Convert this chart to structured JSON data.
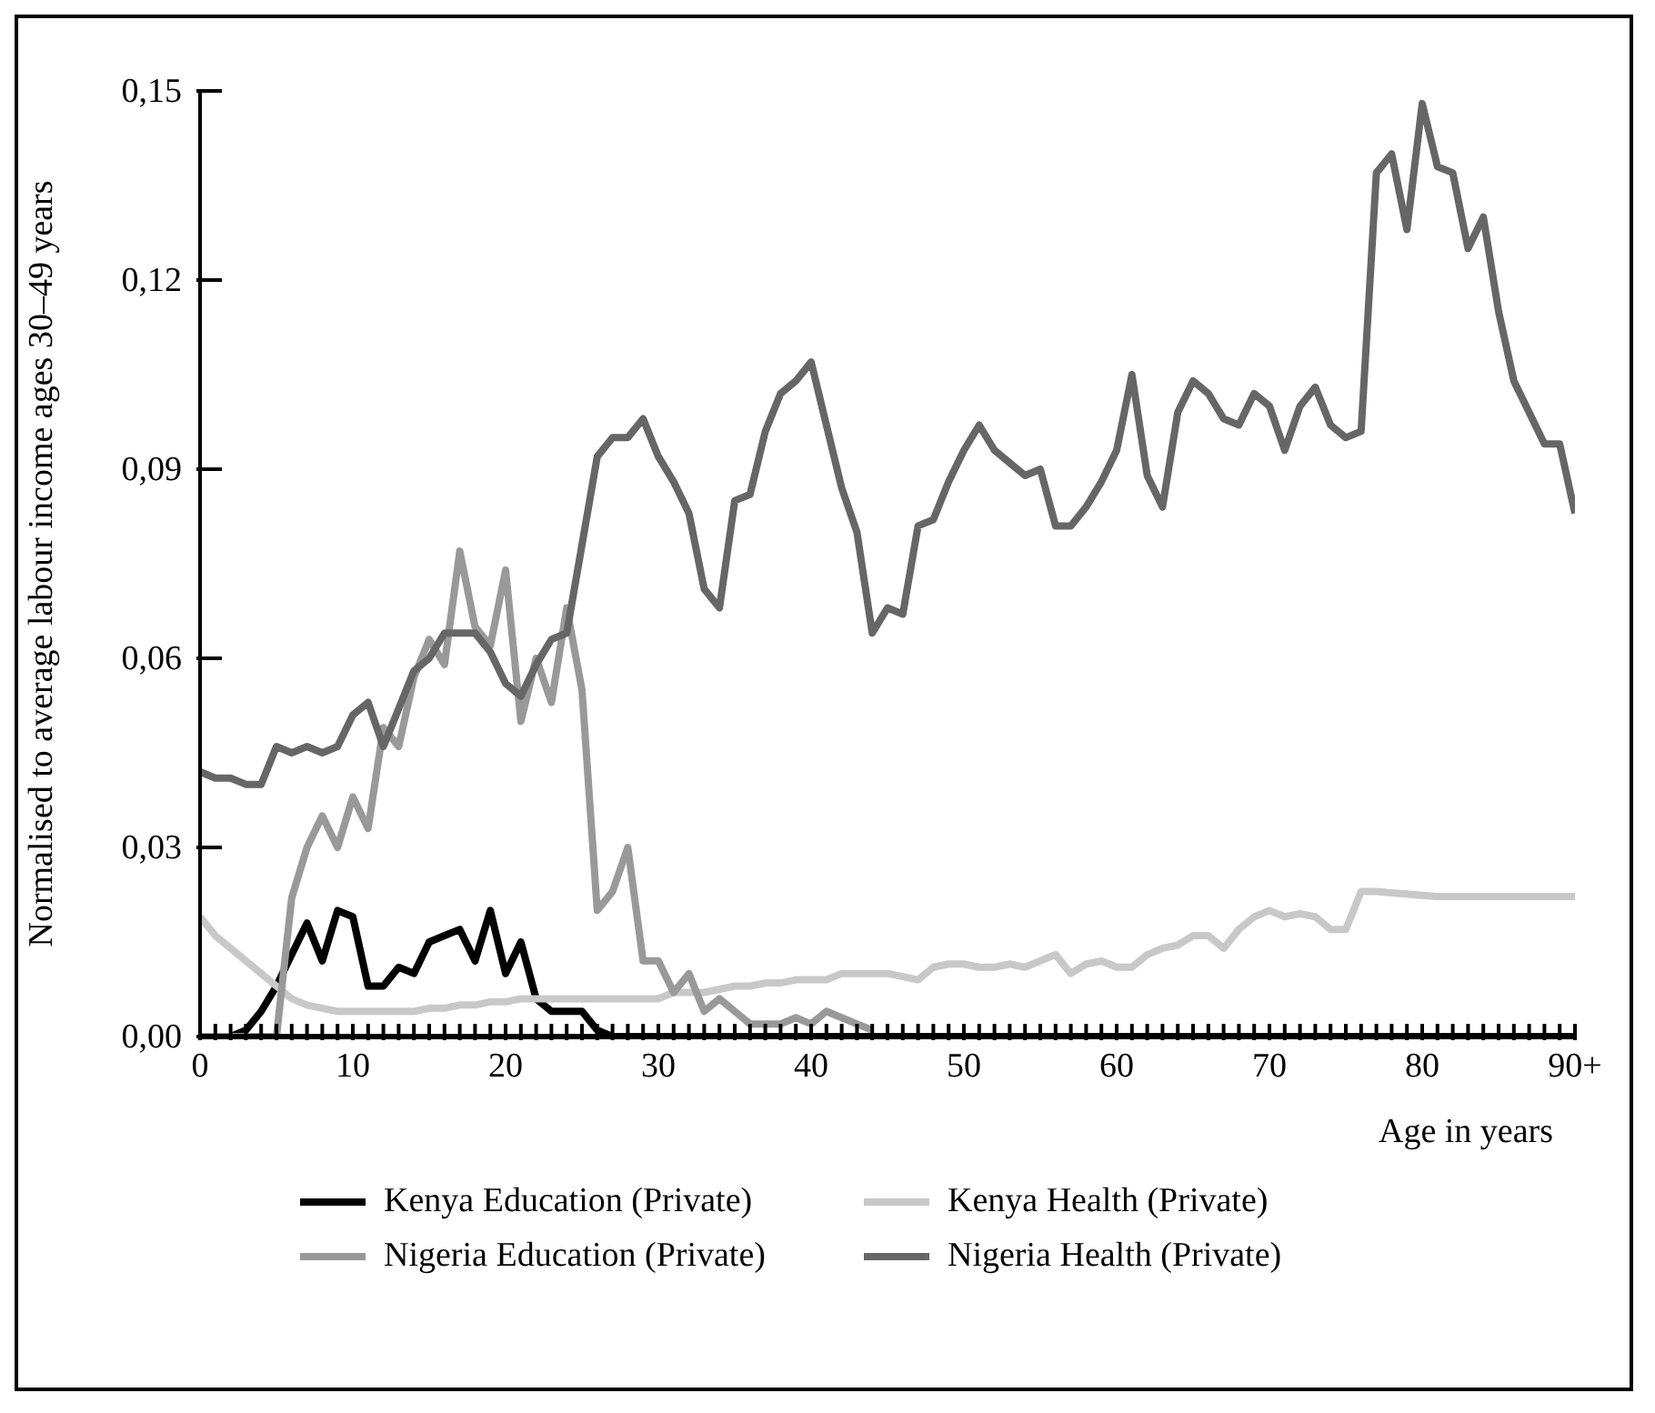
{
  "chart_data": {
    "type": "line",
    "xlabel": "Age in years",
    "ylabel": "Normalised to average labour income ages 30–49 years",
    "x": [
      0,
      1,
      2,
      3,
      4,
      5,
      6,
      7,
      8,
      9,
      10,
      11,
      12,
      13,
      14,
      15,
      16,
      17,
      18,
      19,
      20,
      21,
      22,
      23,
      24,
      25,
      26,
      27,
      28,
      29,
      30,
      31,
      32,
      33,
      34,
      35,
      36,
      37,
      38,
      39,
      40,
      41,
      42,
      43,
      44,
      45,
      46,
      47,
      48,
      49,
      50,
      51,
      52,
      53,
      54,
      55,
      56,
      57,
      58,
      59,
      60,
      61,
      62,
      63,
      64,
      65,
      66,
      67,
      68,
      69,
      70,
      71,
      72,
      73,
      74,
      75,
      76,
      77,
      78,
      79,
      80,
      81,
      82,
      83,
      84,
      85,
      86,
      87,
      88,
      89,
      90
    ],
    "xlim": [
      0,
      90
    ],
    "xticks": [
      0,
      {
        "value": 1,
        "label": null
      },
      {
        "value": 2,
        "label": null
      },
      {
        "value": 3,
        "label": null
      },
      {
        "value": 4,
        "label": null
      },
      {
        "value": 5,
        "label": null
      },
      {
        "value": 6,
        "label": null
      },
      {
        "value": 7,
        "label": null
      },
      {
        "value": 8,
        "label": null
      },
      {
        "value": 9,
        "label": null
      },
      10,
      {
        "value": 11,
        "label": null
      },
      {
        "value": 12,
        "label": null
      },
      {
        "value": 13,
        "label": null
      },
      {
        "value": 14,
        "label": null
      },
      {
        "value": 15,
        "label": null
      },
      {
        "value": 16,
        "label": null
      },
      {
        "value": 17,
        "label": null
      },
      {
        "value": 18,
        "label": null
      },
      {
        "value": 19,
        "label": null
      },
      20,
      {
        "value": 21,
        "label": null
      },
      {
        "value": 22,
        "label": null
      },
      {
        "value": 23,
        "label": null
      },
      {
        "value": 24,
        "label": null
      },
      {
        "value": 25,
        "label": null
      },
      {
        "value": 26,
        "label": null
      },
      {
        "value": 27,
        "label": null
      },
      {
        "value": 28,
        "label": null
      },
      {
        "value": 29,
        "label": null
      },
      30,
      {
        "value": 31,
        "label": null
      },
      {
        "value": 32,
        "label": null
      },
      {
        "value": 33,
        "label": null
      },
      {
        "value": 34,
        "label": null
      },
      {
        "value": 35,
        "label": null
      },
      {
        "value": 36,
        "label": null
      },
      {
        "value": 37,
        "label": null
      },
      {
        "value": 38,
        "label": null
      },
      {
        "value": 39,
        "label": null
      },
      40,
      {
        "value": 41,
        "label": null
      },
      {
        "value": 42,
        "label": null
      },
      {
        "value": 43,
        "label": null
      },
      {
        "value": 44,
        "label": null
      },
      {
        "value": 45,
        "label": null
      },
      {
        "value": 46,
        "label": null
      },
      {
        "value": 47,
        "label": null
      },
      {
        "value": 48,
        "label": null
      },
      {
        "value": 49,
        "label": null
      },
      50,
      {
        "value": 51,
        "label": null
      },
      {
        "value": 52,
        "label": null
      },
      {
        "value": 53,
        "label": null
      },
      {
        "value": 54,
        "label": null
      },
      {
        "value": 55,
        "label": null
      },
      {
        "value": 56,
        "label": null
      },
      {
        "value": 57,
        "label": null
      },
      {
        "value": 58,
        "label": null
      },
      {
        "value": 59,
        "label": null
      },
      60,
      {
        "value": 61,
        "label": null
      },
      {
        "value": 62,
        "label": null
      },
      {
        "value": 63,
        "label": null
      },
      {
        "value": 64,
        "label": null
      },
      {
        "value": 65,
        "label": null
      },
      {
        "value": 66,
        "label": null
      },
      {
        "value": 67,
        "label": null
      },
      {
        "value": 68,
        "label": null
      },
      {
        "value": 69,
        "label": null
      },
      70,
      {
        "value": 71,
        "label": null
      },
      {
        "value": 72,
        "label": null
      },
      {
        "value": 73,
        "label": null
      },
      {
        "value": 74,
        "label": null
      },
      {
        "value": 75,
        "label": null
      },
      {
        "value": 76,
        "label": null
      },
      {
        "value": 77,
        "label": null
      },
      {
        "value": 78,
        "label": null
      },
      {
        "value": 79,
        "label": null
      },
      80,
      {
        "value": 81,
        "label": null
      },
      {
        "value": 82,
        "label": null
      },
      {
        "value": 83,
        "label": null
      },
      {
        "value": 84,
        "label": null
      },
      {
        "value": 85,
        "label": null
      },
      {
        "value": 86,
        "label": null
      },
      {
        "value": 87,
        "label": null
      },
      {
        "value": 88,
        "label": null
      },
      {
        "value": 89,
        "label": null
      },
      {
        "value": 90,
        "label": "90+"
      }
    ],
    "ylim": [
      0,
      0.15
    ],
    "yticks": [
      {
        "value": 0,
        "label": "0,00"
      },
      {
        "value": 0.03,
        "label": "0,03"
      },
      {
        "value": 0.06,
        "label": "0,06"
      },
      {
        "value": 0.09,
        "label": "0,09"
      },
      {
        "value": 0.12,
        "label": "0,12"
      },
      {
        "value": 0.15,
        "label": "0,15"
      }
    ],
    "grid": false,
    "legend": "bottom",
    "marker": "none",
    "line_style": "solid",
    "series": [
      {
        "name": "Kenya Education (Private)",
        "color": "#000000",
        "values": [
          0,
          0,
          0,
          0.001,
          0.004,
          0.008,
          0.013,
          0.018,
          0.012,
          0.02,
          0.019,
          0.008,
          0.008,
          0.011,
          0.01,
          0.015,
          0.016,
          0.017,
          0.012,
          0.02,
          0.01,
          0.015,
          0.006,
          0.004,
          0.004,
          0.004,
          0.001,
          0,
          0,
          0,
          0,
          0,
          0,
          0,
          0,
          0,
          0,
          0,
          0,
          0,
          0,
          0,
          0,
          0,
          0,
          0,
          0,
          0,
          0,
          0,
          0,
          0,
          0,
          0,
          0,
          0,
          0,
          0,
          0,
          0,
          0,
          0,
          0,
          0,
          0,
          0,
          0,
          0,
          0,
          0,
          0,
          0,
          0,
          0,
          0,
          0,
          0,
          0,
          0,
          0,
          0,
          0,
          0,
          0,
          0,
          0,
          0,
          0,
          0,
          0,
          0
        ]
      },
      {
        "name": "Kenya Health (Private)",
        "color": "#c8c8c8",
        "values": [
          0.019,
          0.016,
          0.014,
          0.012,
          0.01,
          0.008,
          0.006,
          0.005,
          0.0045,
          0.004,
          0.004,
          0.004,
          0.004,
          0.004,
          0.004,
          0.0045,
          0.0045,
          0.005,
          0.005,
          0.0055,
          0.0055,
          0.006,
          0.006,
          0.006,
          0.006,
          0.006,
          0.006,
          0.006,
          0.006,
          0.006,
          0.006,
          0.007,
          0.007,
          0.007,
          0.0075,
          0.008,
          0.008,
          0.0085,
          0.0085,
          0.009,
          0.009,
          0.009,
          0.01,
          0.01,
          0.01,
          0.01,
          0.0095,
          0.009,
          0.011,
          0.0115,
          0.0115,
          0.011,
          0.011,
          0.0115,
          0.011,
          0.012,
          0.013,
          0.01,
          0.0115,
          0.012,
          0.011,
          0.011,
          0.013,
          0.014,
          0.0145,
          0.016,
          0.016,
          0.014,
          0.017,
          0.019,
          0.02,
          0.019,
          0.0195,
          0.019,
          0.017,
          0.017,
          0.023,
          0.023,
          0.0228,
          0.0226,
          0.0224,
          0.0222,
          0.0222,
          0.0222,
          0.0222,
          0.0222,
          0.0222,
          0.0222,
          0.0222,
          0.0222,
          0.0222
        ]
      },
      {
        "name": "Nigeria Education (Private)",
        "color": "#999999",
        "values": [
          0,
          0,
          0,
          0,
          0,
          0,
          0.022,
          0.03,
          0.035,
          0.03,
          0.038,
          0.033,
          0.049,
          0.046,
          0.057,
          0.063,
          0.059,
          0.077,
          0.065,
          0.062,
          0.074,
          0.05,
          0.06,
          0.053,
          0.068,
          0.055,
          0.02,
          0.023,
          0.03,
          0.012,
          0.012,
          0.007,
          0.01,
          0.004,
          0.006,
          0.004,
          0.002,
          0.002,
          0.002,
          0.003,
          0.002,
          0.004,
          0.003,
          0.002,
          0.001,
          null,
          null,
          null,
          null,
          null,
          null,
          null,
          null,
          null,
          null,
          null,
          null,
          null,
          null,
          null,
          null,
          null,
          null,
          null,
          null,
          null,
          null,
          null,
          null,
          null,
          null,
          null,
          null,
          null,
          null,
          null,
          null,
          null,
          null,
          null,
          null,
          null,
          null,
          null,
          null,
          null,
          null,
          null,
          null,
          null,
          null
        ]
      },
      {
        "name": "Nigeria Health (Private)",
        "color": "#666666",
        "values": [
          0.042,
          0.041,
          0.041,
          0.04,
          0.04,
          0.046,
          0.045,
          0.046,
          0.045,
          0.046,
          0.051,
          0.053,
          0.046,
          0.052,
          0.058,
          0.06,
          0.064,
          0.064,
          0.064,
          0.061,
          0.056,
          0.054,
          0.059,
          0.063,
          0.064,
          0.078,
          0.092,
          0.095,
          0.095,
          0.098,
          0.092,
          0.088,
          0.083,
          0.071,
          0.068,
          0.085,
          0.086,
          0.096,
          0.102,
          0.104,
          0.107,
          0.097,
          0.087,
          0.08,
          0.064,
          0.068,
          0.067,
          0.081,
          0.082,
          0.088,
          0.093,
          0.097,
          0.093,
          0.091,
          0.089,
          0.09,
          0.081,
          0.081,
          0.084,
          0.088,
          0.093,
          0.105,
          0.089,
          0.084,
          0.099,
          0.104,
          0.102,
          0.098,
          0.097,
          0.102,
          0.1,
          0.093,
          0.1,
          0.103,
          0.097,
          0.095,
          0.096,
          0.137,
          0.14,
          0.128,
          0.148,
          0.138,
          0.137,
          0.125,
          0.13,
          0.115,
          0.104,
          0.099,
          0.094,
          0.094,
          0.083
        ]
      }
    ]
  }
}
